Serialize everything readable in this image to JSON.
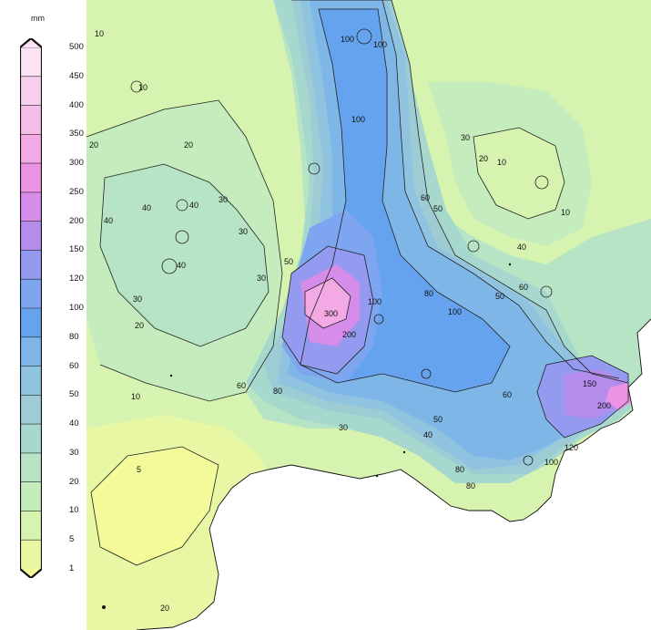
{
  "legend": {
    "unit": "mm",
    "levels": [
      {
        "value": "500",
        "color": "#fbe3f4"
      },
      {
        "value": "450",
        "color": "#f8d0ee"
      },
      {
        "value": "400",
        "color": "#f5bde8"
      },
      {
        "value": "350",
        "color": "#f2a9e4"
      },
      {
        "value": "300",
        "color": "#ec93e5"
      },
      {
        "value": "250",
        "color": "#d68ce9"
      },
      {
        "value": "200",
        "color": "#b48cec"
      },
      {
        "value": "150",
        "color": "#939aef"
      },
      {
        "value": "120",
        "color": "#7ea5f0"
      },
      {
        "value": "100",
        "color": "#66a3ef"
      },
      {
        "value": "80",
        "color": "#7fb6e8"
      },
      {
        "value": "60",
        "color": "#8fc3e0"
      },
      {
        "value": "50",
        "color": "#9dccd5"
      },
      {
        "value": "40",
        "color": "#a6d8cd"
      },
      {
        "value": "30",
        "color": "#b6e4c4"
      },
      {
        "value": "20",
        "color": "#c5ecbc"
      },
      {
        "value": "10",
        "color": "#d7f3b0"
      },
      {
        "value": "5",
        "color": "#e8f7a4"
      },
      {
        "value": "1",
        "color": "#f2fa9a"
      }
    ]
  },
  "contour_labels": [
    {
      "text": "10"
    },
    {
      "text": "10"
    },
    {
      "text": "20"
    },
    {
      "text": "20"
    },
    {
      "text": "20"
    },
    {
      "text": "30"
    },
    {
      "text": "30"
    },
    {
      "text": "30"
    },
    {
      "text": "30"
    },
    {
      "text": "30"
    },
    {
      "text": "40"
    },
    {
      "text": "40"
    },
    {
      "text": "40"
    },
    {
      "text": "40"
    },
    {
      "text": "40"
    },
    {
      "text": "50"
    },
    {
      "text": "50"
    },
    {
      "text": "50"
    },
    {
      "text": "60"
    },
    {
      "text": "60"
    },
    {
      "text": "60"
    },
    {
      "text": "80"
    },
    {
      "text": "80"
    },
    {
      "text": "80"
    },
    {
      "text": "80"
    },
    {
      "text": "100"
    },
    {
      "text": "100"
    },
    {
      "text": "100"
    },
    {
      "text": "100"
    },
    {
      "text": "100"
    },
    {
      "text": "100"
    },
    {
      "text": "120"
    },
    {
      "text": "150"
    },
    {
      "text": "200"
    },
    {
      "text": "200"
    },
    {
      "text": "300"
    },
    {
      "text": "10"
    },
    {
      "text": "10"
    },
    {
      "text": "5"
    },
    {
      "text": "20"
    },
    {
      "text": "20"
    },
    {
      "text": "30"
    },
    {
      "text": "40"
    },
    {
      "text": "50"
    },
    {
      "text": "60"
    },
    {
      "text": "10"
    }
  ]
}
